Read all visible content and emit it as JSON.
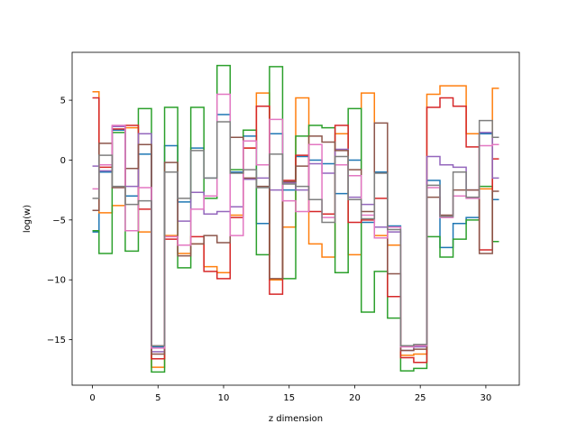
{
  "chart_data": {
    "type": "line",
    "drawstyle": "steps-mid",
    "title": "",
    "xlabel": "z dimension",
    "ylabel": "log(w)",
    "xlim": [
      -1.55,
      32.55
    ],
    "ylim": [
      -18.8,
      9.0
    ],
    "xticks": [
      0,
      5,
      10,
      15,
      20,
      25,
      30
    ],
    "yticks": [
      -15,
      -10,
      -5,
      0,
      5
    ],
    "grid": false,
    "x": [
      0,
      1,
      2,
      3,
      4,
      5,
      6,
      7,
      8,
      9,
      10,
      11,
      12,
      13,
      14,
      15,
      16,
      17,
      18,
      19,
      20,
      21,
      22,
      23,
      24,
      25,
      26,
      27,
      28,
      29,
      30,
      31
    ],
    "series": [
      {
        "color": "#1f77b4",
        "values": [
          -6.0,
          -1.0,
          2.5,
          -3.0,
          0.5,
          -15.6,
          1.2,
          -3.5,
          1.0,
          -1.5,
          3.8,
          -1.0,
          2.0,
          -5.3,
          2.2,
          -2.5,
          0.3,
          0.0,
          -0.3,
          -2.8,
          0.0,
          -5.2,
          -1.0,
          -5.5,
          -15.5,
          -15.5,
          -1.7,
          -7.3,
          -5.3,
          -4.8,
          2.2,
          -3.3
        ]
      },
      {
        "color": "#ff7f0e",
        "values": [
          5.7,
          -4.4,
          -3.8,
          2.7,
          -6.0,
          -17.3,
          -6.3,
          -7.8,
          -7.0,
          -8.9,
          -9.4,
          -4.6,
          1.0,
          5.6,
          -10.0,
          -5.6,
          5.2,
          -7.0,
          -8.1,
          2.2,
          -7.9,
          5.6,
          -6.3,
          -7.1,
          -16.3,
          -16.2,
          5.5,
          6.2,
          6.2,
          2.2,
          -2.4,
          6.0
        ]
      },
      {
        "color": "#2ca02c",
        "values": [
          -5.9,
          -7.8,
          2.3,
          -7.6,
          4.3,
          -17.7,
          4.4,
          -9.0,
          4.4,
          -3.2,
          7.9,
          -0.8,
          2.5,
          -7.9,
          7.8,
          -9.9,
          2.0,
          2.9,
          2.7,
          -9.4,
          4.3,
          -12.7,
          -9.3,
          -13.2,
          -17.6,
          -17.4,
          -6.4,
          -8.1,
          -6.6,
          -5.0,
          -2.2,
          -6.8
        ]
      },
      {
        "color": "#d62728",
        "values": [
          5.2,
          -0.6,
          2.6,
          2.9,
          -4.1,
          -16.6,
          -6.6,
          -7.1,
          -6.4,
          -9.3,
          -9.9,
          -4.8,
          1.0,
          4.5,
          -11.2,
          -1.7,
          0.4,
          -4.3,
          -4.5,
          2.9,
          -5.2,
          -5.0,
          -3.2,
          -11.4,
          -16.5,
          -16.9,
          4.4,
          5.2,
          4.5,
          1.1,
          -7.5,
          0.1
        ]
      },
      {
        "color": "#9467bd",
        "values": [
          -0.5,
          -0.9,
          2.8,
          -2.2,
          2.2,
          -16.0,
          -1.0,
          -5.1,
          -2.7,
          -4.5,
          -4.3,
          -3.9,
          -1.6,
          -1.5,
          -2.5,
          -1.9,
          -2.5,
          -0.3,
          -1.1,
          0.9,
          -3.1,
          -3.7,
          -5.6,
          -6.0,
          -15.9,
          -15.6,
          0.3,
          -0.4,
          -0.6,
          -2.5,
          2.3,
          -1.5
        ]
      },
      {
        "color": "#8c564b",
        "values": [
          -4.2,
          1.4,
          -2.3,
          -0.7,
          1.3,
          -16.2,
          -0.2,
          -8.0,
          -7.0,
          -6.3,
          -6.9,
          1.9,
          -1.5,
          -2.2,
          -9.9,
          -1.8,
          -0.5,
          2.0,
          1.5,
          0.8,
          -0.8,
          -4.3,
          3.1,
          -9.5,
          -15.9,
          -15.8,
          -3.1,
          -4.6,
          -2.5,
          -2.5,
          -7.8,
          -2.6
        ]
      },
      {
        "color": "#e377c2",
        "values": [
          -2.4,
          -0.4,
          2.9,
          -5.9,
          -2.3,
          -15.7,
          -6.4,
          -7.1,
          -4.1,
          -3.0,
          5.5,
          -6.3,
          1.6,
          -0.4,
          3.4,
          -3.4,
          -4.3,
          1.3,
          -4.8,
          -0.4,
          -1.3,
          -4.6,
          -6.5,
          -5.6,
          -15.6,
          -15.5,
          -2.3,
          -4.8,
          -3.0,
          -3.2,
          1.2,
          1.3
        ]
      },
      {
        "color": "#7f7f7f",
        "values": [
          -3.2,
          0.4,
          -2.2,
          -3.7,
          -3.4,
          -15.5,
          -1.0,
          -3.2,
          0.8,
          -1.5,
          3.2,
          -1.1,
          -0.8,
          -2.3,
          0.5,
          -2.0,
          -2.2,
          -3.3,
          -5.2,
          0.3,
          -3.3,
          -4.9,
          -1.1,
          -5.8,
          -15.5,
          -15.4,
          -2.1,
          -4.7,
          -1.0,
          -3.1,
          3.3,
          1.9
        ]
      }
    ]
  }
}
